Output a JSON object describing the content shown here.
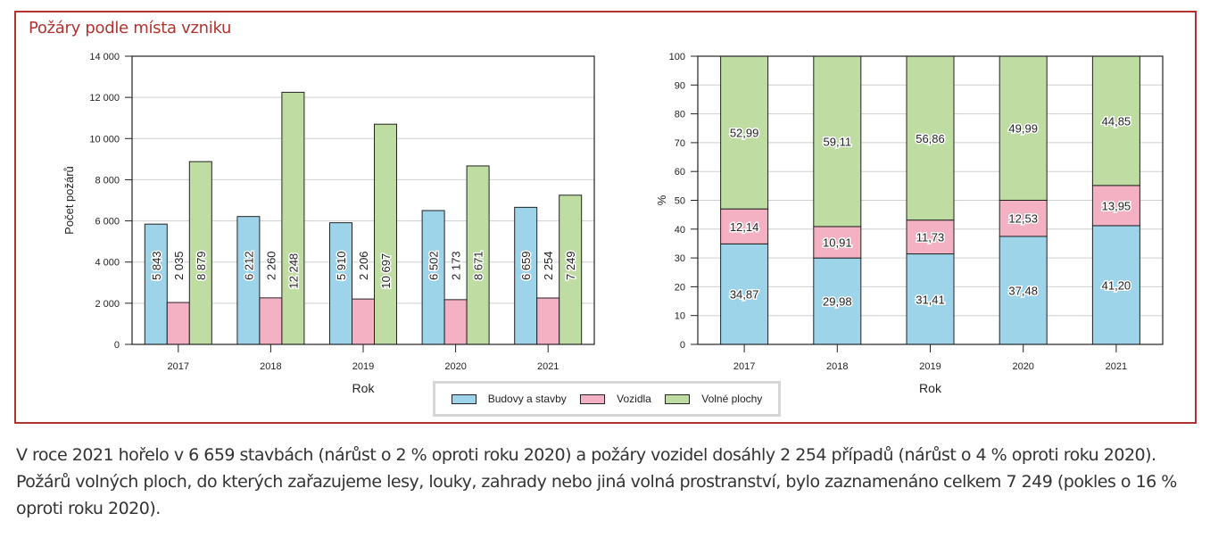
{
  "title": "Požáry podle místa vzniku",
  "colors": {
    "budovy": "#9dd4ea",
    "vozidla": "#f3b1c3",
    "volne": "#bfdca3",
    "frame": "#b1322e"
  },
  "legend": [
    {
      "label": "Budovy a stavby",
      "color": "#9dd4ea"
    },
    {
      "label": "Vozidla",
      "color": "#f3b1c3"
    },
    {
      "label": "Volné plochy",
      "color": "#bfdca3"
    }
  ],
  "chart_data": [
    {
      "type": "bar",
      "categories": [
        "2017",
        "2018",
        "2019",
        "2020",
        "2021"
      ],
      "series": [
        {
          "name": "Budovy a stavby",
          "values": [
            5843,
            6212,
            5910,
            6502,
            6659
          ],
          "labels": [
            "5 843",
            "6 212",
            "5 910",
            "6 502",
            "6 659"
          ]
        },
        {
          "name": "Vozidla",
          "values": [
            2035,
            2260,
            2206,
            2173,
            2254
          ],
          "labels": [
            "2 035",
            "2 260",
            "2 206",
            "2 173",
            "2 254"
          ]
        },
        {
          "name": "Volné plochy",
          "values": [
            8879,
            12248,
            10697,
            8671,
            7249
          ],
          "labels": [
            "8 879",
            "12 248",
            "10 697",
            "8 671",
            "7 249"
          ]
        }
      ],
      "xlabel": "Rok",
      "ylabel": "Počet požárů",
      "ylim": [
        0,
        14000
      ],
      "yticks": [
        "0",
        "2 000",
        "4 000",
        "6 000",
        "8 000",
        "10 000",
        "12 000",
        "14 000"
      ],
      "grid": true
    },
    {
      "type": "bar",
      "stacked": true,
      "categories": [
        "2017",
        "2018",
        "2019",
        "2020",
        "2021"
      ],
      "series": [
        {
          "name": "Budovy a stavby",
          "values": [
            34.87,
            29.98,
            31.41,
            37.48,
            41.2
          ],
          "labels": [
            "34,87",
            "29,98",
            "31,41",
            "37,48",
            "41,20"
          ]
        },
        {
          "name": "Vozidla",
          "values": [
            12.14,
            10.91,
            11.73,
            12.53,
            13.95
          ],
          "labels": [
            "12,14",
            "10,91",
            "11,73",
            "12,53",
            "13,95"
          ]
        },
        {
          "name": "Volné plochy",
          "values": [
            52.99,
            59.11,
            56.86,
            49.99,
            44.85
          ],
          "labels": [
            "52,99",
            "59,11",
            "56,86",
            "49,99",
            "44,85"
          ]
        }
      ],
      "xlabel": "Rok",
      "ylabel": "%",
      "ylim": [
        0,
        100
      ],
      "yticks": [
        "0",
        "10",
        "20",
        "30",
        "40",
        "50",
        "60",
        "70",
        "80",
        "90",
        "100"
      ],
      "grid": true
    }
  ],
  "paragraph": "V roce 2021 hořelo v 6 659 stavbách (nárůst o 2 % oproti roku 2020) a požáry vozidel dosáhly 2 254 případů (nárůst o 4 % oproti roku 2020). Požárů volných ploch, do kterých zařazujeme lesy, louky, zahrady nebo jiná volná prostranství, bylo zaznamenáno celkem 7 249 (pokles o 16 % oproti roku 2020)."
}
